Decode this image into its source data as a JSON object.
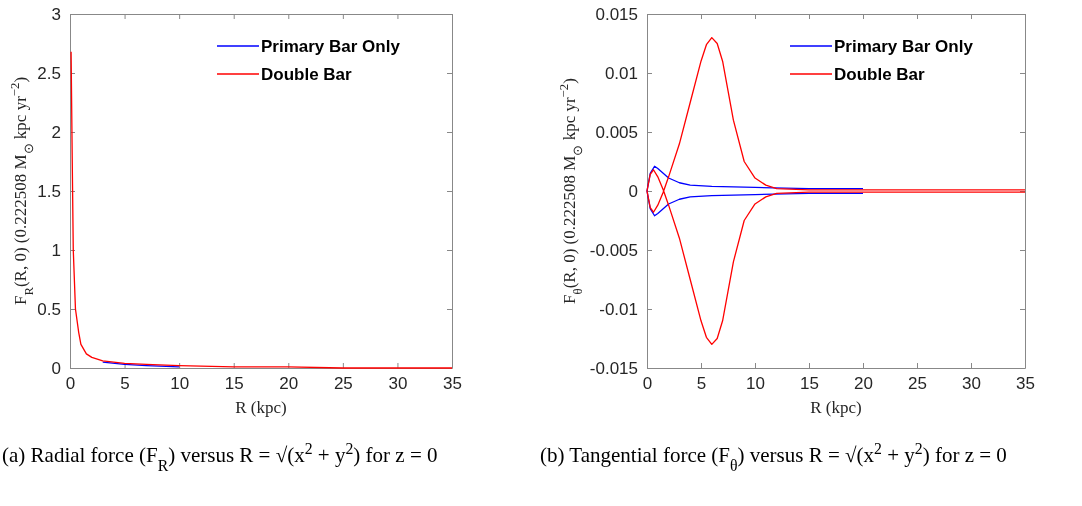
{
  "chart_data": [
    {
      "type": "line",
      "xlabel": "R (kpc)",
      "ylabel": "F$_{R}$(R, 0)  (0.222508 M$_{⊙}$ kpc yr$^{−2}$)",
      "xlim": [
        0,
        35
      ],
      "xticks": [
        0,
        5,
        10,
        15,
        20,
        25,
        30,
        35
      ],
      "ylim": [
        0,
        3
      ],
      "yticks": [
        0,
        0.5,
        1,
        1.5,
        2,
        2.5,
        3
      ],
      "legend": "top right",
      "annotations": [
        "(a) Radial force (F$_{R}$) versus R = √(x$^{2}$ + y$^{2}$) for z = 0"
      ],
      "series": [
        {
          "name": "Primary Bar Only",
          "color": "#0000ff",
          "x": [
            3,
            5,
            7,
            10
          ],
          "values": [
            0.05,
            0.03,
            0.02,
            0.01
          ]
        },
        {
          "name": "Double Bar",
          "color": "#ff0000",
          "x": [
            0.1,
            0.2,
            0.3,
            0.5,
            0.8,
            1,
            1.5,
            2,
            3,
            4,
            5,
            7,
            10,
            15,
            20,
            25,
            30,
            35
          ],
          "values": [
            2.68,
            1.8,
            1.0,
            0.5,
            0.3,
            0.2,
            0.12,
            0.09,
            0.06,
            0.05,
            0.04,
            0.03,
            0.02,
            0.01,
            0.01,
            0,
            0,
            0
          ]
        }
      ]
    },
    {
      "type": "line",
      "xlabel": "R (kpc)",
      "ylabel": "F$_{θ}$(R, 0)  (0.222508 M$_{⊙}$ kpc yr$^{−2}$)",
      "xlim": [
        0,
        35
      ],
      "xticks": [
        0,
        5,
        10,
        15,
        20,
        25,
        30,
        35
      ],
      "ylim": [
        -0.015,
        0.015
      ],
      "yticks": [
        0.015,
        0.01,
        0.005,
        0,
        -0.005,
        -0.01,
        -0.015
      ],
      "legend": "top right",
      "annotations": [
        "(b) Tangential force (F$_{θ}$) versus R = √(x$^{2}$ + y$^{2}$) for z = 0"
      ],
      "series": [
        {
          "name": "Primary Bar Only",
          "color": "#0000ff",
          "x": [
            20,
            15,
            10,
            6,
            4,
            3,
            2,
            1.5,
            1,
            0.7,
            0.3,
            0,
            0.3,
            0.7,
            1,
            1.5,
            2,
            3,
            4,
            6,
            10,
            15,
            20
          ],
          "values": [
            -0.0002,
            -0.0002,
            -0.0003,
            -0.0004,
            -0.0005,
            -0.0007,
            -0.0011,
            -0.0015,
            -0.0019,
            -0.0021,
            -0.0015,
            0,
            0.0015,
            0.0021,
            0.0019,
            0.0015,
            0.0011,
            0.0007,
            0.0005,
            0.0004,
            0.0003,
            0.0002,
            0.0002
          ]
        },
        {
          "name": "Double Bar",
          "color": "#ff0000",
          "x": [
            35,
            15,
            12,
            11,
            10,
            9,
            8,
            7.5,
            7,
            6.5,
            6,
            5.5,
            5,
            4,
            3,
            2,
            1.5,
            1,
            0.6,
            0.3,
            0,
            0.3,
            0.6,
            1,
            1.5,
            2,
            3,
            4,
            5,
            5.5,
            6,
            6.5,
            7,
            7.5,
            8,
            9,
            10,
            11,
            12,
            15,
            35
          ],
          "values": [
            0.0001,
            0.0001,
            0.0002,
            0.0005,
            0.0011,
            0.0025,
            0.006,
            0.0085,
            0.011,
            0.0125,
            0.013,
            0.0124,
            0.011,
            0.0075,
            0.004,
            0.0012,
            -0.0001,
            -0.0012,
            -0.0018,
            -0.0014,
            0,
            0.0014,
            0.0018,
            0.0012,
            0.0001,
            -0.0012,
            -0.004,
            -0.0075,
            -0.011,
            -0.0124,
            -0.013,
            -0.0125,
            -0.011,
            -0.0085,
            -0.006,
            -0.0025,
            -0.0011,
            -0.0005,
            -0.0002,
            -0.0001,
            -0.0001
          ]
        }
      ]
    }
  ]
}
